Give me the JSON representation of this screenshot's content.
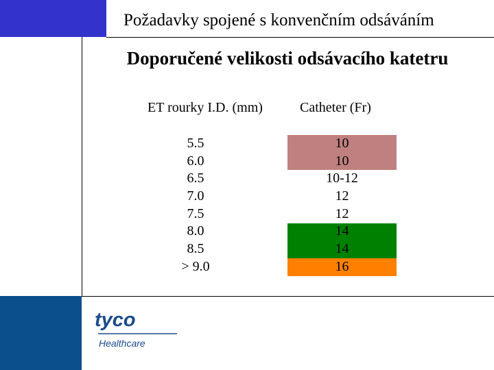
{
  "header": {
    "title": "Požadavky spojené s konvenčním odsáváním",
    "subtitle": "Doporučené velikosti odsávacího katetru"
  },
  "table": {
    "col_left_header": "ET rourky I.D. (mm)",
    "col_right_header": "Catheter (Fr)",
    "left_values": [
      "5.5",
      "6.0",
      "6.5",
      "7.0",
      "7.5",
      "8.0",
      "8.5",
      "> 9.0"
    ],
    "right_values": [
      "10",
      "10",
      "10-12",
      "12",
      "12",
      "14",
      "14",
      "16"
    ],
    "bands": [
      {
        "from_row": 0,
        "to_row": 1,
        "color": "#c08080"
      },
      {
        "from_row": 5,
        "to_row": 6,
        "color": "#008000"
      },
      {
        "from_row": 7,
        "to_row": 7,
        "color": "#ff8000"
      }
    ]
  },
  "logo": {
    "word": "tyco",
    "sub": "Healthcare"
  },
  "colors": {
    "accent_blue": "#3333cc",
    "footer_blue": "#0b4f8c",
    "logo_blue": "#1b4b8a"
  }
}
